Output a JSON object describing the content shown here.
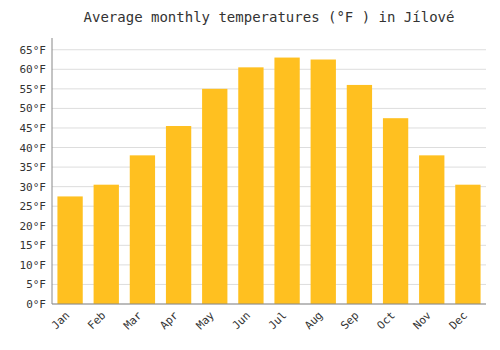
{
  "chart_data": {
    "type": "bar",
    "title": "Average monthly temperatures (°F ) in Jílové",
    "categories": [
      "Jan",
      "Feb",
      "Mar",
      "Apr",
      "May",
      "Jun",
      "Jul",
      "Aug",
      "Sep",
      "Oct",
      "Nov",
      "Dec"
    ],
    "values": [
      27.5,
      30.5,
      38.0,
      45.5,
      55.0,
      60.5,
      63.0,
      62.5,
      56.0,
      47.5,
      38.0,
      30.5
    ],
    "color": "#FFC020",
    "ylim": [
      0,
      68
    ],
    "yticks": [
      {
        "value": 0,
        "label": "0°F"
      },
      {
        "value": 5,
        "label": "5°F"
      },
      {
        "value": 10,
        "label": "10°F"
      },
      {
        "value": 15,
        "label": "15°F"
      },
      {
        "value": 20,
        "label": "20°F"
      },
      {
        "value": 25,
        "label": "25°F"
      },
      {
        "value": 30,
        "label": "30°F"
      },
      {
        "value": 35,
        "label": "35°F"
      },
      {
        "value": 40,
        "label": "40°F"
      },
      {
        "value": 45,
        "label": "45°F"
      },
      {
        "value": 50,
        "label": "50°F"
      },
      {
        "value": 55,
        "label": "55°F"
      },
      {
        "value": 60,
        "label": "60°F"
      },
      {
        "value": 65,
        "label": "65°F"
      }
    ],
    "grid": true
  }
}
